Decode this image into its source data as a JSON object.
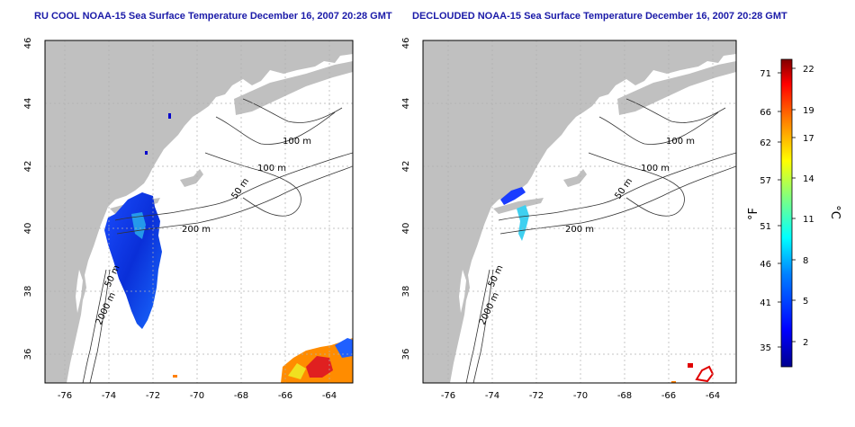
{
  "panels": [
    {
      "title": "RU COOL NOAA-15 Sea Surface Temperature December 16, 2007 20:28 GMT",
      "contour_labels": [
        "100 m",
        "100 m",
        "50 m",
        "200 m",
        "50 m",
        "2000 m"
      ]
    },
    {
      "title": "DECLOUDED NOAA-15 Sea Surface Temperature December 16, 2007 20:28 GMT",
      "contour_labels": [
        "100 m",
        "100 m",
        "50 m",
        "200 m",
        "50 m",
        "2000 m"
      ]
    }
  ],
  "x_ticks": [
    "-76",
    "-74",
    "-72",
    "-70",
    "-68",
    "-66",
    "-64"
  ],
  "y_ticks": [
    "36",
    "38",
    "40",
    "42",
    "44",
    "46"
  ],
  "colorbar": {
    "fahrenheit_label": "°F",
    "celsius_label": "°C",
    "fahrenheit_ticks": [
      "71",
      "66",
      "62",
      "57",
      "51",
      "46",
      "41",
      "35"
    ],
    "celsius_ticks": [
      "22",
      "19",
      "17",
      "14",
      "11",
      "8",
      "5",
      "2"
    ],
    "colors": [
      "#00008f",
      "#0000ff",
      "#0080ff",
      "#00ffff",
      "#80ff80",
      "#ffff00",
      "#ff8000",
      "#ff0000",
      "#800000"
    ]
  },
  "colors": {
    "land": "#c0c0c0",
    "ocean": "#ffffff",
    "grid": "#b0b0b0",
    "title": "#1a1aa8"
  }
}
